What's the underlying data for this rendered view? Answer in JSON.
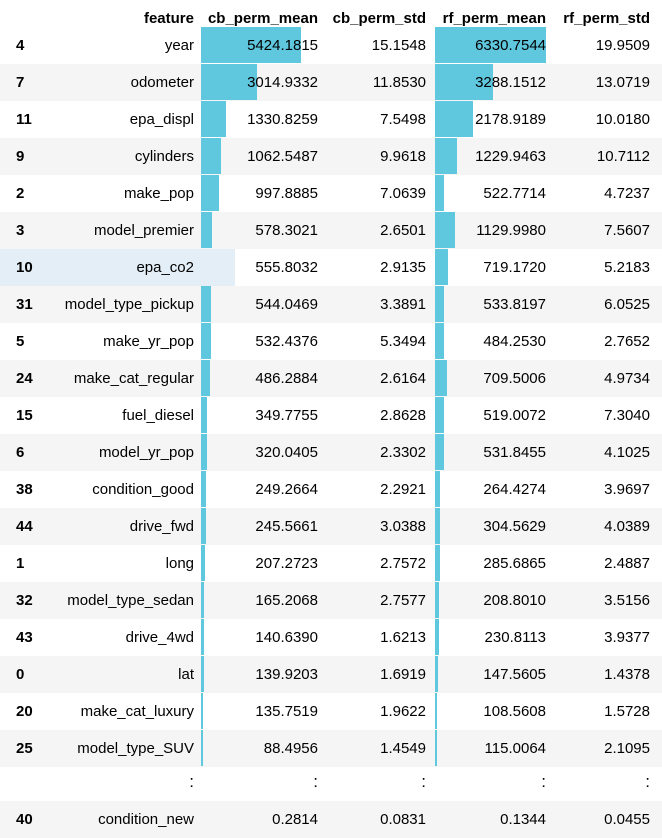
{
  "columns": {
    "index": "",
    "feature": "feature",
    "cb_mean": "cb_perm_mean",
    "cb_std": "cb_perm_std",
    "rf_mean": "rf_perm_mean",
    "rf_std": "rf_perm_std"
  },
  "bar_color": "#5fc8df",
  "rows": [
    {
      "index": "4",
      "feature": "year",
      "cb_mean": "5424.1815",
      "cb_std": "15.1548",
      "rf_mean": "6330.7544",
      "rf_std": "19.9509",
      "cb_mean_frac": 0.857,
      "rf_mean_frac": 1.0
    },
    {
      "index": "7",
      "feature": "odometer",
      "cb_mean": "3014.9332",
      "cb_std": "11.8530",
      "rf_mean": "3288.1512",
      "rf_std": "13.0719",
      "cb_mean_frac": 0.476,
      "rf_mean_frac": 0.519
    },
    {
      "index": "11",
      "feature": "epa_displ",
      "cb_mean": "1330.8259",
      "cb_std": "7.5498",
      "rf_mean": "2178.9189",
      "rf_std": "10.0180",
      "cb_mean_frac": 0.21,
      "rf_mean_frac": 0.344
    },
    {
      "index": "9",
      "feature": "cylinders",
      "cb_mean": "1062.5487",
      "cb_std": "9.9618",
      "rf_mean": "1229.9463",
      "rf_std": "10.7112",
      "cb_mean_frac": 0.168,
      "rf_mean_frac": 0.194
    },
    {
      "index": "2",
      "feature": "make_pop",
      "cb_mean": "997.8885",
      "cb_std": "7.0639",
      "rf_mean": "522.7714",
      "rf_std": "4.7237",
      "cb_mean_frac": 0.158,
      "rf_mean_frac": 0.083
    },
    {
      "index": "3",
      "feature": "model_premier",
      "cb_mean": "578.3021",
      "cb_std": "2.6501",
      "rf_mean": "1129.9980",
      "rf_std": "7.5607",
      "cb_mean_frac": 0.091,
      "rf_mean_frac": 0.178
    },
    {
      "index": "10",
      "feature": "epa_co2",
      "cb_mean": "555.8032",
      "cb_std": "2.9135",
      "rf_mean": "719.1720",
      "rf_std": "5.2183",
      "cb_mean_frac": 0.088,
      "rf_mean_frac": 0.114
    },
    {
      "index": "31",
      "feature": "model_type_pickup",
      "cb_mean": "544.0469",
      "cb_std": "3.3891",
      "rf_mean": "533.8197",
      "rf_std": "6.0525",
      "cb_mean_frac": 0.086,
      "rf_mean_frac": 0.084
    },
    {
      "index": "5",
      "feature": "make_yr_pop",
      "cb_mean": "532.4376",
      "cb_std": "5.3494",
      "rf_mean": "484.2530",
      "rf_std": "2.7652",
      "cb_mean_frac": 0.084,
      "rf_mean_frac": 0.077
    },
    {
      "index": "24",
      "feature": "make_cat_regular",
      "cb_mean": "486.2884",
      "cb_std": "2.6164",
      "rf_mean": "709.5006",
      "rf_std": "4.9734",
      "cb_mean_frac": 0.077,
      "rf_mean_frac": 0.112
    },
    {
      "index": "15",
      "feature": "fuel_diesel",
      "cb_mean": "349.7755",
      "cb_std": "2.8628",
      "rf_mean": "519.0072",
      "rf_std": "7.3040",
      "cb_mean_frac": 0.055,
      "rf_mean_frac": 0.082
    },
    {
      "index": "6",
      "feature": "model_yr_pop",
      "cb_mean": "320.0405",
      "cb_std": "2.3302",
      "rf_mean": "531.8455",
      "rf_std": "4.1025",
      "cb_mean_frac": 0.051,
      "rf_mean_frac": 0.084
    },
    {
      "index": "38",
      "feature": "condition_good",
      "cb_mean": "249.2664",
      "cb_std": "2.2921",
      "rf_mean": "264.4274",
      "rf_std": "3.9697",
      "cb_mean_frac": 0.039,
      "rf_mean_frac": 0.042
    },
    {
      "index": "44",
      "feature": "drive_fwd",
      "cb_mean": "245.5661",
      "cb_std": "3.0388",
      "rf_mean": "304.5629",
      "rf_std": "4.0389",
      "cb_mean_frac": 0.039,
      "rf_mean_frac": 0.048
    },
    {
      "index": "1",
      "feature": "long",
      "cb_mean": "207.2723",
      "cb_std": "2.7572",
      "rf_mean": "285.6865",
      "rf_std": "2.4887",
      "cb_mean_frac": 0.033,
      "rf_mean_frac": 0.045
    },
    {
      "index": "32",
      "feature": "model_type_sedan",
      "cb_mean": "165.2068",
      "cb_std": "2.7577",
      "rf_mean": "208.8010",
      "rf_std": "3.5156",
      "cb_mean_frac": 0.026,
      "rf_mean_frac": 0.033
    },
    {
      "index": "43",
      "feature": "drive_4wd",
      "cb_mean": "140.6390",
      "cb_std": "1.6213",
      "rf_mean": "230.8113",
      "rf_std": "3.9377",
      "cb_mean_frac": 0.022,
      "rf_mean_frac": 0.036
    },
    {
      "index": "0",
      "feature": "lat",
      "cb_mean": "139.9203",
      "cb_std": "1.6919",
      "rf_mean": "147.5605",
      "rf_std": "1.4378",
      "cb_mean_frac": 0.022,
      "rf_mean_frac": 0.023
    },
    {
      "index": "20",
      "feature": "make_cat_luxury",
      "cb_mean": "135.7519",
      "cb_std": "1.9622",
      "rf_mean": "108.5608",
      "rf_std": "1.5728",
      "cb_mean_frac": 0.021,
      "rf_mean_frac": 0.017
    },
    {
      "index": "25",
      "feature": "model_type_SUV",
      "cb_mean": "88.4956",
      "cb_std": "1.4549",
      "rf_mean": "115.0064",
      "rf_std": "2.1095",
      "cb_mean_frac": 0.014,
      "rf_mean_frac": 0.018
    }
  ],
  "ellipsis": {
    "symbol": ":"
  },
  "last_row": {
    "index": "40",
    "feature": "condition_new",
    "cb_mean": "0.2814",
    "cb_std": "0.0831",
    "rf_mean": "0.1344",
    "rf_std": "0.0455",
    "cb_mean_frac": 0.0,
    "rf_mean_frac": 0.0
  }
}
